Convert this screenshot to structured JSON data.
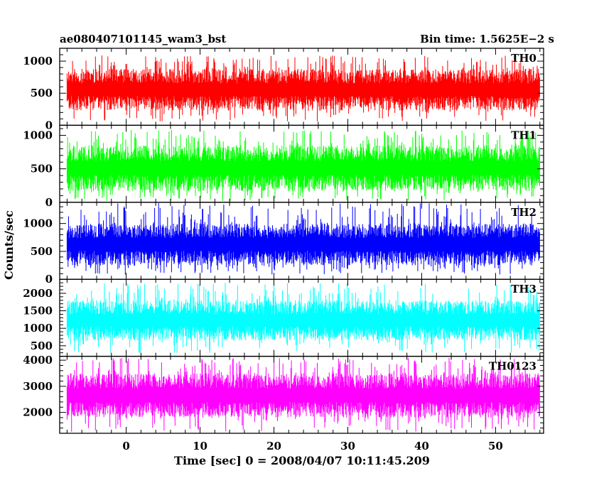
{
  "chart_data": {
    "type": "line",
    "title": "ae080407101145_wam3_bst",
    "bin_time_label": "Bin time: 1.5625E−2 s",
    "xlabel": "Time [sec] 0 = 2008/04/07 10:11:45.209",
    "ylabel": "Counts/sec",
    "xlim": [
      -9,
      56.5
    ],
    "x_ticks": [
      0,
      10,
      20,
      30,
      40,
      50
    ],
    "x_tick_labels": [
      "0",
      "10",
      "20",
      "30",
      "40",
      "50"
    ],
    "data_x_range": [
      -8,
      56
    ],
    "grid": false,
    "panels": [
      {
        "name": "TH0",
        "color": "#ff0000",
        "ylim": [
          0,
          1200
        ],
        "y_ticks": [
          0,
          500,
          1000
        ],
        "y_tick_labels": [
          "0",
          "500",
          "1000"
        ],
        "signal_range": [
          60,
          1090
        ],
        "dense_range": [
          230,
          880
        ]
      },
      {
        "name": "TH1",
        "color": "#00ff00",
        "ylim": [
          0,
          1150
        ],
        "y_ticks": [
          0,
          500,
          1000
        ],
        "y_tick_labels": [
          "0",
          "500",
          "1000"
        ],
        "signal_range": [
          20,
          1080
        ],
        "dense_range": [
          170,
          850
        ]
      },
      {
        "name": "TH2",
        "color": "#0000ff",
        "ylim": [
          0,
          1380
        ],
        "y_ticks": [
          0,
          500,
          1000
        ],
        "y_tick_labels": [
          "0",
          "500",
          "1000"
        ],
        "signal_range": [
          80,
          1370
        ],
        "dense_range": [
          250,
          1000
        ]
      },
      {
        "name": "TH3",
        "color": "#00ffff",
        "ylim": [
          200,
          2400
        ],
        "y_ticks": [
          500,
          1000,
          1500,
          2000
        ],
        "y_tick_labels": [
          "500",
          "1000",
          "1500",
          "2000"
        ],
        "signal_range": [
          300,
          2300
        ],
        "dense_range": [
          650,
          1800
        ]
      },
      {
        "name": "TH0123",
        "color": "#ff00ff",
        "ylim": [
          1200,
          4150
        ],
        "y_ticks": [
          2000,
          3000,
          4000
        ],
        "y_tick_labels": [
          "2000",
          "3000",
          "4000"
        ],
        "signal_range": [
          1250,
          4100
        ],
        "dense_range": [
          1800,
          3500
        ]
      }
    ]
  }
}
